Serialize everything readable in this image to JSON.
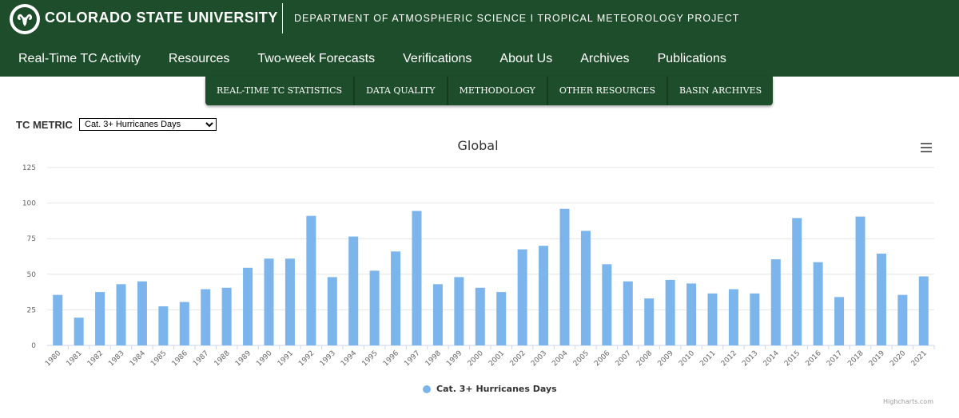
{
  "header": {
    "university": "COLORADO STATE UNIVERSITY",
    "department": "DEPARTMENT OF ATMOSPHERIC SCIENCE I TROPICAL METEOROLOGY PROJECT",
    "bg_color": "#1e4d2b"
  },
  "main_nav": [
    "Real-Time TC Activity",
    "Resources",
    "Two-week Forecasts",
    "Verifications",
    "About Us",
    "Archives",
    "Publications"
  ],
  "sub_nav": [
    "REAL-TIME TC STATISTICS",
    "DATA QUALITY",
    "METHODOLOGY",
    "OTHER RESOURCES",
    "BASIN ARCHIVES"
  ],
  "metric": {
    "label": "TC METRIC",
    "selected": "Cat. 3+ Hurricanes Days"
  },
  "menu_icon": "hamburger-icon",
  "credits": "Highcharts.com",
  "chart_data": {
    "type": "bar",
    "title": "Global",
    "xlabel": "",
    "ylabel": "",
    "ylim": [
      0,
      125
    ],
    "yticks": [
      "0",
      "25",
      "50",
      "75",
      "100",
      "125"
    ],
    "grid": true,
    "legend_position": "bottom-center",
    "color": "#7cb5ec",
    "categories": [
      "1980",
      "1981",
      "1982",
      "1983",
      "1984",
      "1985",
      "1986",
      "1987",
      "1988",
      "1989",
      "1990",
      "1991",
      "1992",
      "1993",
      "1994",
      "1995",
      "1996",
      "1997",
      "1998",
      "1999",
      "2000",
      "2001",
      "2002",
      "2003",
      "2004",
      "2005",
      "2006",
      "2007",
      "2008",
      "2009",
      "2010",
      "2011",
      "2012",
      "2013",
      "2014",
      "2015",
      "2016",
      "2017",
      "2018",
      "2019",
      "2020",
      "2021"
    ],
    "series": [
      {
        "name": "Cat. 3+ Hurricanes Days",
        "values": [
          35.5,
          19.5,
          37.5,
          43,
          45,
          27.5,
          30.5,
          39.5,
          40.5,
          54.5,
          61,
          61,
          91,
          48,
          76.5,
          52.5,
          66,
          94.5,
          43,
          48,
          40.5,
          37.5,
          67.5,
          70,
          96,
          80.5,
          57,
          45,
          33,
          46,
          43.5,
          36.5,
          39.5,
          36.5,
          60.5,
          89.5,
          58.5,
          34,
          90.5,
          64.5,
          35.5,
          48.5
        ]
      }
    ]
  }
}
